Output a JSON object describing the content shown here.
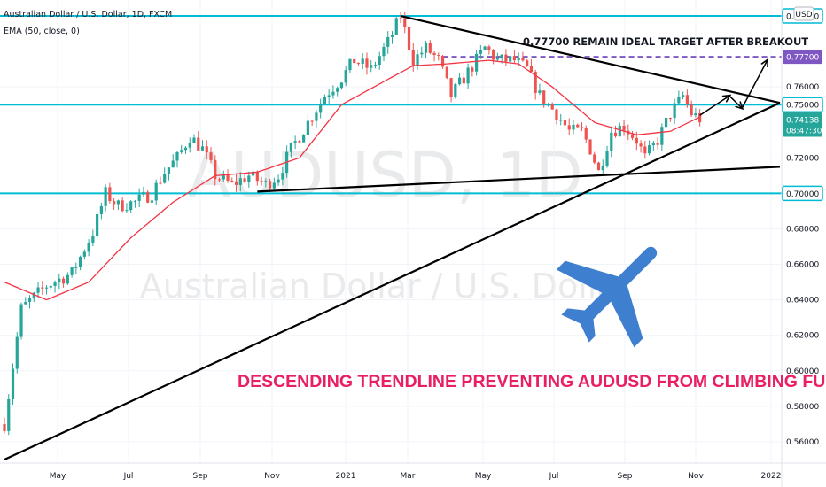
{
  "header": {
    "symbol_line": "Australian Dollar / U.S. Dollar, 1D, FXCM",
    "indicator_line": "EMA (50, close, 0)",
    "currency": "USD"
  },
  "watermark": {
    "ticker": "AUDUSD, 1D",
    "name": "Australian Dollar / U.S. Dollar"
  },
  "annotations": {
    "target_note": "0.77700 REMAIN IDEAL TARGET AFTER BREAKOUT",
    "main_note": "DESCENDING TRENDLINE PREVENTING AUDUSD FROM CLIMBING FURTHER"
  },
  "colors": {
    "candle_up": "#26a69a",
    "candle_down": "#ef5350",
    "ema": "#f23645",
    "level_line": "#00bcd4",
    "target_line": "#7e57c2",
    "trendline": "#000000",
    "annotation_pink": "#e91e63",
    "airplane": "#3f7fcf"
  },
  "chart_data": {
    "type": "candlestick",
    "symbol": "AUDUSD",
    "timeframe": "1D",
    "x_tick_labels": [
      "May",
      "Jul",
      "Sep",
      "Nov",
      "2021",
      "Mar",
      "May",
      "Jul",
      "Sep",
      "Nov",
      "2022"
    ],
    "y_tick_labels": [
      "0.56000",
      "0.58000",
      "0.60000",
      "0.62000",
      "0.64000",
      "0.66000",
      "0.68000",
      "0.72000",
      "0.76000"
    ],
    "ylim": [
      0.548,
      0.806
    ],
    "horizontal_levels": [
      {
        "price": 0.8,
        "label": "0.80000"
      },
      {
        "price": 0.75,
        "label": "0.75000"
      },
      {
        "price": 0.7,
        "label": "0.70000"
      }
    ],
    "target_level": {
      "price": 0.777,
      "label": "0.77700"
    },
    "last_price": {
      "price": 0.74138,
      "label": "0.74138",
      "countdown": "08:47:30"
    },
    "close_path": [
      [
        0,
        0.57
      ],
      [
        4,
        0.635
      ],
      [
        10,
        0.648
      ],
      [
        16,
        0.655
      ],
      [
        21,
        0.678
      ],
      [
        24,
        0.7
      ],
      [
        27,
        0.693
      ],
      [
        31,
        0.695
      ],
      [
        35,
        0.7
      ],
      [
        38,
        0.712
      ],
      [
        41,
        0.72
      ],
      [
        44,
        0.732
      ],
      [
        47,
        0.725
      ],
      [
        50,
        0.71
      ],
      [
        54,
        0.705
      ],
      [
        58,
        0.71
      ],
      [
        62,
        0.705
      ],
      [
        65,
        0.71
      ],
      [
        68,
        0.725
      ],
      [
        72,
        0.74
      ],
      [
        76,
        0.755
      ],
      [
        80,
        0.765
      ],
      [
        83,
        0.775
      ],
      [
        87,
        0.77
      ],
      [
        91,
        0.785
      ],
      [
        94,
        0.8
      ],
      [
        97,
        0.775
      ],
      [
        100,
        0.782
      ],
      [
        103,
        0.775
      ],
      [
        106,
        0.755
      ],
      [
        109,
        0.765
      ],
      [
        112,
        0.775
      ],
      [
        114,
        0.782
      ],
      [
        117,
        0.775
      ],
      [
        121,
        0.775
      ],
      [
        124,
        0.77
      ],
      [
        127,
        0.755
      ],
      [
        131,
        0.745
      ],
      [
        134,
        0.735
      ],
      [
        137,
        0.735
      ],
      [
        139,
        0.725
      ],
      [
        141,
        0.712
      ],
      [
        144,
        0.735
      ],
      [
        147,
        0.738
      ],
      [
        150,
        0.73
      ],
      [
        152,
        0.72
      ],
      [
        155,
        0.73
      ],
      [
        158,
        0.745
      ],
      [
        161,
        0.755
      ],
      [
        163,
        0.745
      ],
      [
        165,
        0.742
      ]
    ],
    "ema_path": [
      [
        0,
        0.65
      ],
      [
        10,
        0.64
      ],
      [
        20,
        0.65
      ],
      [
        30,
        0.675
      ],
      [
        40,
        0.695
      ],
      [
        50,
        0.71
      ],
      [
        60,
        0.712
      ],
      [
        70,
        0.72
      ],
      [
        80,
        0.75
      ],
      [
        90,
        0.763
      ],
      [
        97,
        0.772
      ],
      [
        105,
        0.773
      ],
      [
        115,
        0.775
      ],
      [
        122,
        0.773
      ],
      [
        130,
        0.76
      ],
      [
        140,
        0.74
      ],
      [
        150,
        0.733
      ],
      [
        158,
        0.735
      ],
      [
        165,
        0.743
      ]
    ],
    "trendlines": [
      {
        "name": "descending",
        "from": [
          94,
          0.8
        ],
        "to": [
          184,
          0.751
        ]
      },
      {
        "name": "ascending",
        "from": [
          0,
          0.55
        ],
        "to": [
          184,
          0.751
        ]
      },
      {
        "name": "support",
        "from": [
          60,
          0.701
        ],
        "to": [
          184,
          0.715
        ]
      }
    ],
    "breakout_arrows": [
      [
        [
          165,
          0.744
        ],
        [
          172,
          0.755
        ]
      ],
      [
        [
          172,
          0.755
        ],
        [
          175,
          0.748
        ]
      ],
      [
        [
          175,
          0.748
        ],
        [
          181,
          0.775
        ]
      ]
    ],
    "x_count": 185
  }
}
